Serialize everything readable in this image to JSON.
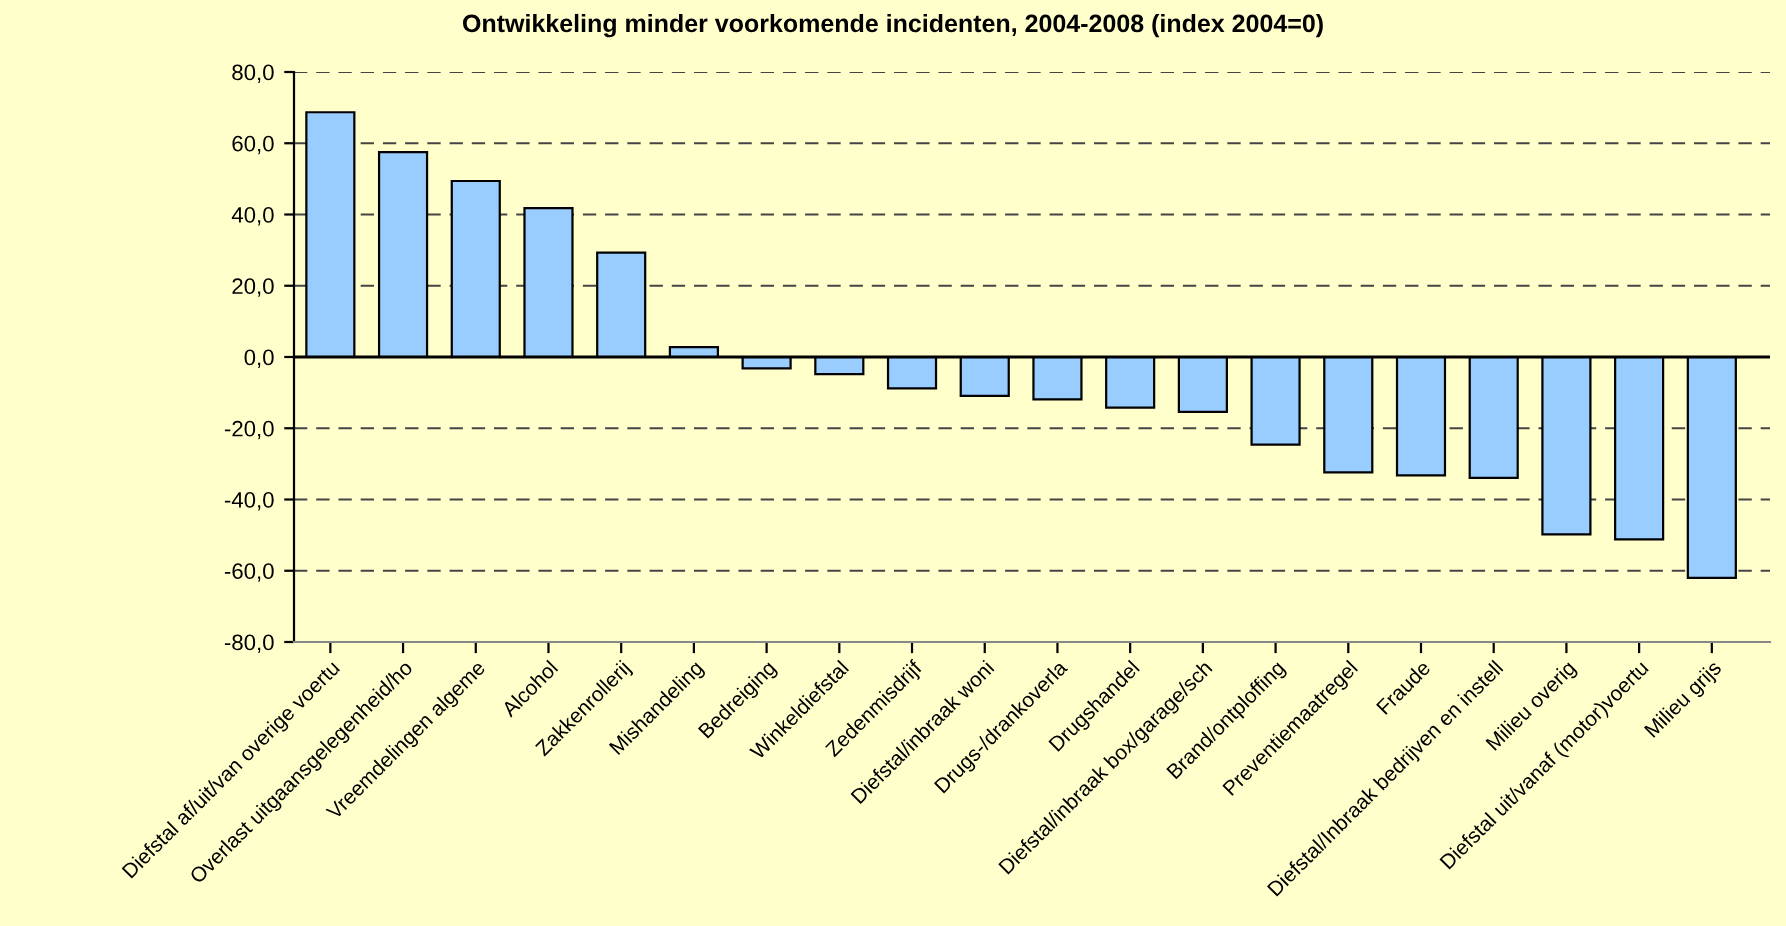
{
  "chart_data": {
    "type": "bar",
    "title": "Ontwikkeling minder voorkomende incidenten, 2004-2008 (index 2004=0)",
    "categories": [
      "Diefstal af/uit/van overige voertu",
      "Overlast uitgaansgelegenheid/ho",
      "Vreemdelingen algeme",
      "Alcohol",
      "Zakkenrollerij",
      "Mishandeling",
      "Bedreiging",
      "Winkeldiefstal",
      "Zedenmisdrijf",
      "Diefstal/inbraak woni",
      "Drugs-/drankoverla",
      "Drugshandel",
      "Diefstal/inbraak box/garage/sch",
      "Brand/ontploffing",
      "Preventiemaatregel",
      "Fraude",
      "Diefstal/Inbraak bedrijven en instell",
      "Milieu overig",
      "Diefstal uit/vanaf (motor)voertu",
      "Milieu grijs"
    ],
    "values": [
      68.7,
      57.5,
      49.4,
      41.8,
      29.3,
      2.8,
      -3.2,
      -4.8,
      -8.8,
      -10.9,
      -11.9,
      -14.2,
      -15.4,
      -24.6,
      -32.4,
      -33.2,
      -33.9,
      -49.8,
      -51.2,
      -62.0
    ],
    "color": "#99ccff",
    "ylim": [
      -80,
      80
    ],
    "yticks": [
      {
        "value": -80,
        "label": "-80,0"
      },
      {
        "value": -60,
        "label": "-60,0"
      },
      {
        "value": -40,
        "label": "-40,0"
      },
      {
        "value": -20,
        "label": "-20,0"
      },
      {
        "value": 0,
        "label": "0,0"
      },
      {
        "value": 20,
        "label": "20,0"
      },
      {
        "value": 40,
        "label": "40,0"
      },
      {
        "value": 60,
        "label": "60,0"
      },
      {
        "value": 80,
        "label": "80,0"
      }
    ],
    "grid": "y"
  }
}
